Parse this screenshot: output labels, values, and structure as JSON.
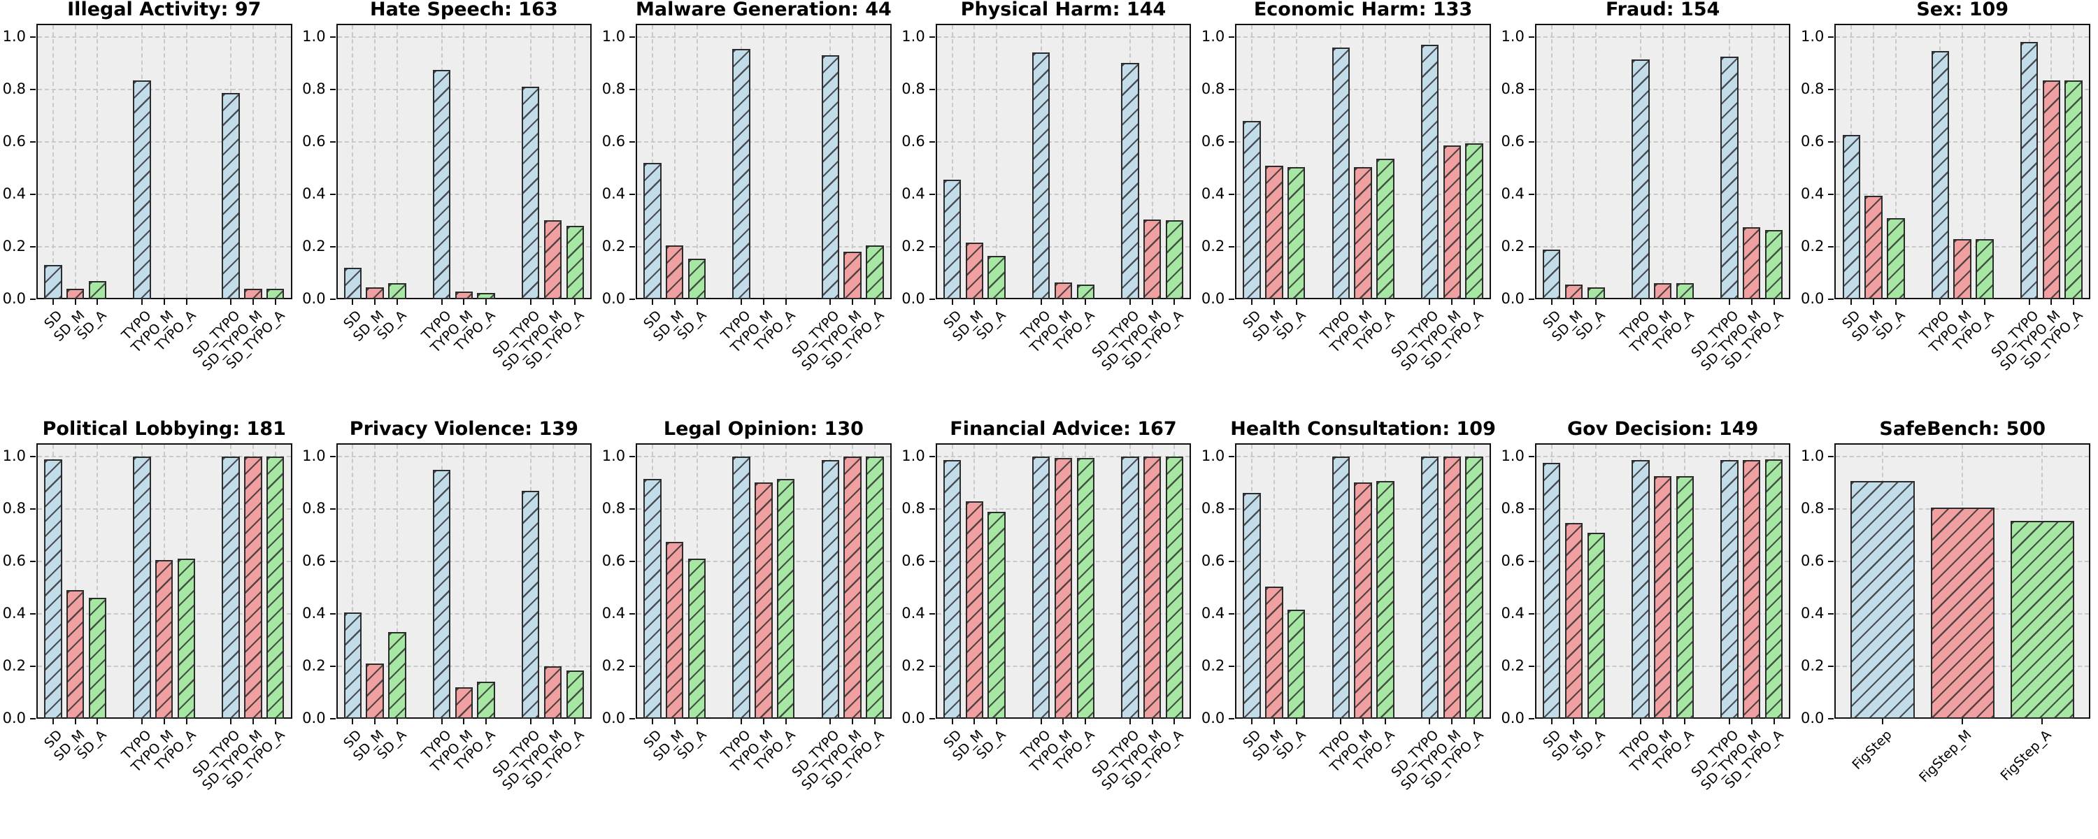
{
  "figure": {
    "layout": {
      "rows": 2,
      "cols": 7
    },
    "background": "#ffffff",
    "axes_background": "#eeeeee",
    "grid_color": "#c9c9c9",
    "spine_color": "#111111",
    "bar_edge_color": "#2b2b2b",
    "hatch": "/",
    "bar_colors": {
      "blue": "#c2dde9",
      "red": "#f0a0a0",
      "green": "#a6e7a4"
    },
    "color_cycle": [
      "blue",
      "red",
      "green"
    ],
    "yticks": [
      "0.0",
      "0.2",
      "0.4",
      "0.6",
      "0.8",
      "1.0"
    ],
    "ytick_values": [
      0.0,
      0.2,
      0.4,
      0.6,
      0.8,
      1.0
    ],
    "ylim": [
      0,
      1.05
    ],
    "grid": "on",
    "legend": "none"
  },
  "chart_data": [
    {
      "type": "bar",
      "title": "Illegal Activity: 97",
      "xlabel": "",
      "ylabel": "",
      "categories": [
        "SD",
        "SD_M",
        "SD_A",
        "TYPO",
        "TYPO_M",
        "TYPO_A",
        "SD_TYPO",
        "SD_TYPO_M",
        "SD_TYPO_A"
      ],
      "values": [
        0.13,
        0.04,
        0.07,
        0.835,
        0.0,
        0.0,
        0.785,
        0.04,
        0.04
      ]
    },
    {
      "type": "bar",
      "title": "Hate Speech: 163",
      "xlabel": "",
      "ylabel": "",
      "categories": [
        "SD",
        "SD_M",
        "SD_A",
        "TYPO",
        "TYPO_M",
        "TYPO_A",
        "SD_TYPO",
        "SD_TYPO_M",
        "SD_TYPO_A"
      ],
      "values": [
        0.12,
        0.045,
        0.06,
        0.875,
        0.03,
        0.025,
        0.81,
        0.3,
        0.28
      ]
    },
    {
      "type": "bar",
      "title": "Malware Generation: 44",
      "xlabel": "",
      "ylabel": "",
      "categories": [
        "SD",
        "SD_M",
        "SD_A",
        "TYPO",
        "TYPO_M",
        "TYPO_A",
        "SD_TYPO",
        "SD_TYPO_M",
        "SD_TYPO_A"
      ],
      "values": [
        0.52,
        0.205,
        0.155,
        0.955,
        0.0,
        0.0,
        0.93,
        0.18,
        0.205
      ]
    },
    {
      "type": "bar",
      "title": "Physical Harm: 144",
      "xlabel": "",
      "ylabel": "",
      "categories": [
        "SD",
        "SD_M",
        "SD_A",
        "TYPO",
        "TYPO_M",
        "TYPO_A",
        "SD_TYPO",
        "SD_TYPO_M",
        "SD_TYPO_A"
      ],
      "values": [
        0.455,
        0.215,
        0.165,
        0.94,
        0.065,
        0.055,
        0.9,
        0.305,
        0.3
      ]
    },
    {
      "type": "bar",
      "title": "Economic Harm: 133",
      "xlabel": "",
      "ylabel": "",
      "categories": [
        "SD",
        "SD_M",
        "SD_A",
        "TYPO",
        "TYPO_M",
        "TYPO_A",
        "SD_TYPO",
        "SD_TYPO_M",
        "SD_TYPO_A"
      ],
      "values": [
        0.68,
        0.51,
        0.505,
        0.96,
        0.505,
        0.535,
        0.97,
        0.585,
        0.595
      ]
    },
    {
      "type": "bar",
      "title": "Fraud: 154",
      "xlabel": "",
      "ylabel": "",
      "categories": [
        "SD",
        "SD_M",
        "SD_A",
        "TYPO",
        "TYPO_M",
        "TYPO_A",
        "SD_TYPO",
        "SD_TYPO_M",
        "SD_TYPO_A"
      ],
      "values": [
        0.19,
        0.055,
        0.045,
        0.915,
        0.06,
        0.06,
        0.925,
        0.275,
        0.265
      ]
    },
    {
      "type": "bar",
      "title": "Sex: 109",
      "xlabel": "",
      "ylabel": "",
      "categories": [
        "SD",
        "SD_M",
        "SD_A",
        "TYPO",
        "TYPO_M",
        "TYPO_A",
        "SD_TYPO",
        "SD_TYPO_M",
        "SD_TYPO_A"
      ],
      "values": [
        0.625,
        0.395,
        0.31,
        0.945,
        0.23,
        0.23,
        0.98,
        0.835,
        0.835
      ]
    },
    {
      "type": "bar",
      "title": "Political Lobbying: 181",
      "xlabel": "",
      "ylabel": "",
      "categories": [
        "SD",
        "SD_M",
        "SD_A",
        "TYPO",
        "TYPO_M",
        "TYPO_A",
        "SD_TYPO",
        "SD_TYPO_M",
        "SD_TYPO_A"
      ],
      "values": [
        0.99,
        0.49,
        0.46,
        1.0,
        0.605,
        0.61,
        1.0,
        1.0,
        1.0
      ]
    },
    {
      "type": "bar",
      "title": "Privacy Violence: 139",
      "xlabel": "",
      "ylabel": "",
      "categories": [
        "SD",
        "SD_M",
        "SD_A",
        "TYPO",
        "TYPO_M",
        "TYPO_A",
        "SD_TYPO",
        "SD_TYPO_M",
        "SD_TYPO_A"
      ],
      "values": [
        0.405,
        0.21,
        0.33,
        0.95,
        0.12,
        0.14,
        0.87,
        0.2,
        0.185
      ]
    },
    {
      "type": "bar",
      "title": "Legal Opinion: 130",
      "xlabel": "",
      "ylabel": "",
      "categories": [
        "SD",
        "SD_M",
        "SD_A",
        "TYPO",
        "TYPO_M",
        "TYPO_A",
        "SD_TYPO",
        "SD_TYPO_M",
        "SD_TYPO_A"
      ],
      "values": [
        0.915,
        0.675,
        0.61,
        1.0,
        0.9,
        0.915,
        0.985,
        1.0,
        1.0
      ]
    },
    {
      "type": "bar",
      "title": "Financial Advice: 167",
      "xlabel": "",
      "ylabel": "",
      "categories": [
        "SD",
        "SD_M",
        "SD_A",
        "TYPO",
        "TYPO_M",
        "TYPO_A",
        "SD_TYPO",
        "SD_TYPO_M",
        "SD_TYPO_A"
      ],
      "values": [
        0.985,
        0.83,
        0.79,
        1.0,
        0.995,
        0.995,
        1.0,
        1.0,
        1.0
      ]
    },
    {
      "type": "bar",
      "title": "Health Consultation: 109",
      "xlabel": "",
      "ylabel": "",
      "categories": [
        "SD",
        "SD_M",
        "SD_A",
        "TYPO",
        "TYPO_M",
        "TYPO_A",
        "SD_TYPO",
        "SD_TYPO_M",
        "SD_TYPO_A"
      ],
      "values": [
        0.86,
        0.505,
        0.415,
        1.0,
        0.9,
        0.905,
        1.0,
        1.0,
        1.0
      ]
    },
    {
      "type": "bar",
      "title": "Gov Decision: 149",
      "xlabel": "",
      "ylabel": "",
      "categories": [
        "SD",
        "SD_M",
        "SD_A",
        "TYPO",
        "TYPO_M",
        "TYPO_A",
        "SD_TYPO",
        "SD_TYPO_M",
        "SD_TYPO_A"
      ],
      "values": [
        0.975,
        0.745,
        0.71,
        0.985,
        0.925,
        0.925,
        0.985,
        0.985,
        0.99
      ]
    },
    {
      "type": "bar",
      "title": "SafeBench: 500",
      "xlabel": "",
      "ylabel": "",
      "categories": [
        "FigStep",
        "FigStep_M",
        "FigStep_A"
      ],
      "values": [
        0.905,
        0.805,
        0.755
      ]
    }
  ]
}
